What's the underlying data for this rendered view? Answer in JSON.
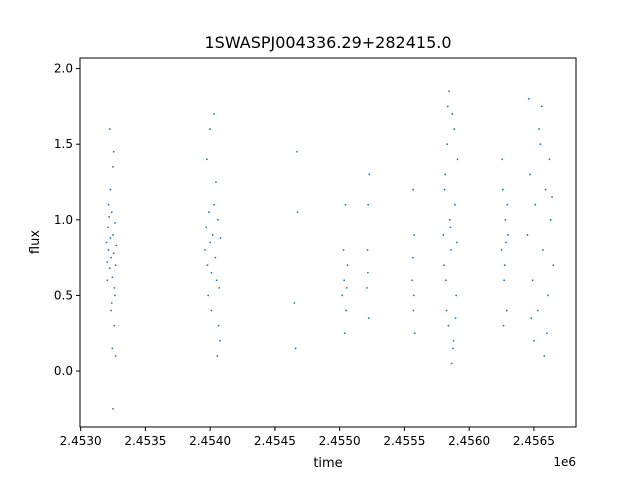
{
  "chart_data": {
    "type": "scatter",
    "title": "1SWASPJ004336.29+282415.0",
    "xlabel": "time",
    "ylabel": "flux",
    "x_offset_label": "1e6",
    "xlim": [
      2452995,
      2456825
    ],
    "ylim": [
      -0.37,
      2.07
    ],
    "x_ticks": [
      2453000,
      2453500,
      2454000,
      2454500,
      2455000,
      2455500,
      2456000,
      2456500
    ],
    "x_tick_labels": [
      "2.4530",
      "2.4535",
      "2.4540",
      "2.4545",
      "2.4550",
      "2.4555",
      "2.4560",
      "2.4565"
    ],
    "y_ticks": [
      0.0,
      0.5,
      1.0,
      1.5,
      2.0
    ],
    "y_tick_labels": [
      "0.0",
      "0.5",
      "1.0",
      "1.5",
      "2.0"
    ],
    "grid": false,
    "legend": "none",
    "marker_color": "#1f77b4",
    "series": [
      {
        "x": [
          2453200,
          2453205,
          2453210,
          2453215,
          2453220,
          2453225,
          2453230,
          2453235,
          2453240,
          2453245,
          2453250,
          2453255,
          2453260,
          2453265,
          2453270,
          2453275,
          2453230,
          2453240,
          2453250,
          2453260,
          2453205,
          2453215,
          2453235,
          2453255,
          2453245,
          2453265,
          2453225,
          2453270,
          2453250,
          2453960,
          2453970,
          2453980,
          2453990,
          2454000,
          2454010,
          2454020,
          2454030,
          2454040,
          2454050,
          2454060,
          2454070,
          2454080,
          2453975,
          2454010,
          2454045,
          2454065,
          2454075,
          2454000,
          2454030,
          2453985,
          2454055,
          2454650,
          2454670,
          2454660,
          2454675,
          2455020,
          2455035,
          2455050,
          2455060,
          2455040,
          2455045,
          2455030,
          2455055,
          2455210,
          2455215,
          2455220,
          2455225,
          2455230,
          2455218,
          2455560,
          2455565,
          2455570,
          2455575,
          2455580,
          2455568,
          2455572,
          2455800,
          2455810,
          2455820,
          2455830,
          2455840,
          2455850,
          2455860,
          2455870,
          2455880,
          2455890,
          2455900,
          2455910,
          2455805,
          2455825,
          2455845,
          2455865,
          2455885,
          2455905,
          2455815,
          2455855,
          2455895,
          2455835,
          2455875,
          2456250,
          2456260,
          2456270,
          2456280,
          2456290,
          2456300,
          2456255,
          2456275,
          2456295,
          2456265,
          2456285,
          2456450,
          2456470,
          2456490,
          2456510,
          2456530,
          2456550,
          2456570,
          2456590,
          2456610,
          2456630,
          2456650,
          2456460,
          2456500,
          2456540,
          2456580,
          2456620,
          2456480,
          2456560,
          2456600,
          2456640
        ],
        "y": [
          0.85,
          0.72,
          0.95,
          0.8,
          1.02,
          0.68,
          0.88,
          0.75,
          1.05,
          0.62,
          0.9,
          0.78,
          0.55,
          0.98,
          0.7,
          0.83,
          1.2,
          0.45,
          1.35,
          0.3,
          0.6,
          1.1,
          0.4,
          1.45,
          0.15,
          0.5,
          1.6,
          0.1,
          -0.25,
          0.8,
          0.95,
          0.7,
          1.05,
          0.85,
          0.65,
          0.9,
          1.1,
          0.75,
          0.6,
          1.0,
          0.55,
          0.88,
          1.4,
          0.4,
          1.25,
          0.3,
          0.2,
          1.6,
          1.7,
          0.5,
          0.1,
          0.45,
          1.45,
          0.15,
          1.05,
          0.5,
          0.6,
          0.4,
          0.7,
          0.25,
          1.1,
          0.8,
          0.55,
          0.55,
          0.8,
          1.1,
          0.35,
          1.3,
          0.65,
          0.6,
          0.75,
          0.4,
          0.9,
          0.25,
          1.2,
          0.5,
          0.9,
          1.2,
          0.6,
          1.5,
          0.3,
          1.0,
          0.8,
          1.7,
          0.2,
          1.1,
          0.5,
          1.4,
          0.7,
          0.4,
          1.85,
          0.05,
          1.6,
          0.85,
          1.3,
          0.95,
          0.35,
          1.75,
          0.15,
          0.8,
          1.2,
          0.6,
          1.0,
          0.4,
          0.9,
          1.4,
          0.7,
          1.1,
          0.3,
          0.85,
          0.9,
          1.3,
          0.6,
          1.1,
          0.4,
          1.5,
          0.8,
          1.2,
          0.5,
          1.0,
          0.7,
          1.8,
          0.2,
          1.6,
          0.1,
          1.4,
          0.35,
          1.75,
          0.25,
          1.15
        ]
      }
    ]
  }
}
